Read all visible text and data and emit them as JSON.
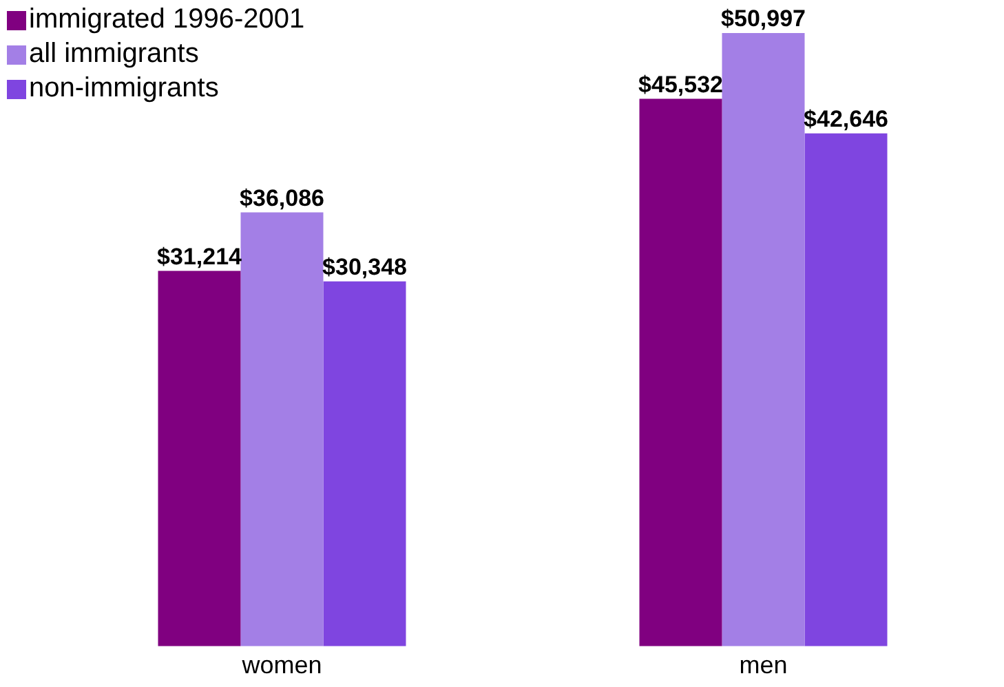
{
  "chart_data": {
    "type": "bar",
    "categories": [
      "women",
      "men"
    ],
    "series": [
      {
        "name": "immigrated 1996-2001",
        "color": "#800080",
        "values": [
          31214,
          45532
        ],
        "value_labels": [
          "$31,214",
          "$45,532"
        ]
      },
      {
        "name": "all immigrants",
        "color": "#a37fe6",
        "values": [
          36086,
          50997
        ],
        "value_labels": [
          "$36,086",
          "$50,997"
        ]
      },
      {
        "name": "non-immigrants",
        "color": "#7f45e0",
        "values": [
          30348,
          42646
        ],
        "value_labels": [
          "$30,348",
          "$42,646"
        ]
      }
    ],
    "legend": "top left",
    "grid": false
  }
}
